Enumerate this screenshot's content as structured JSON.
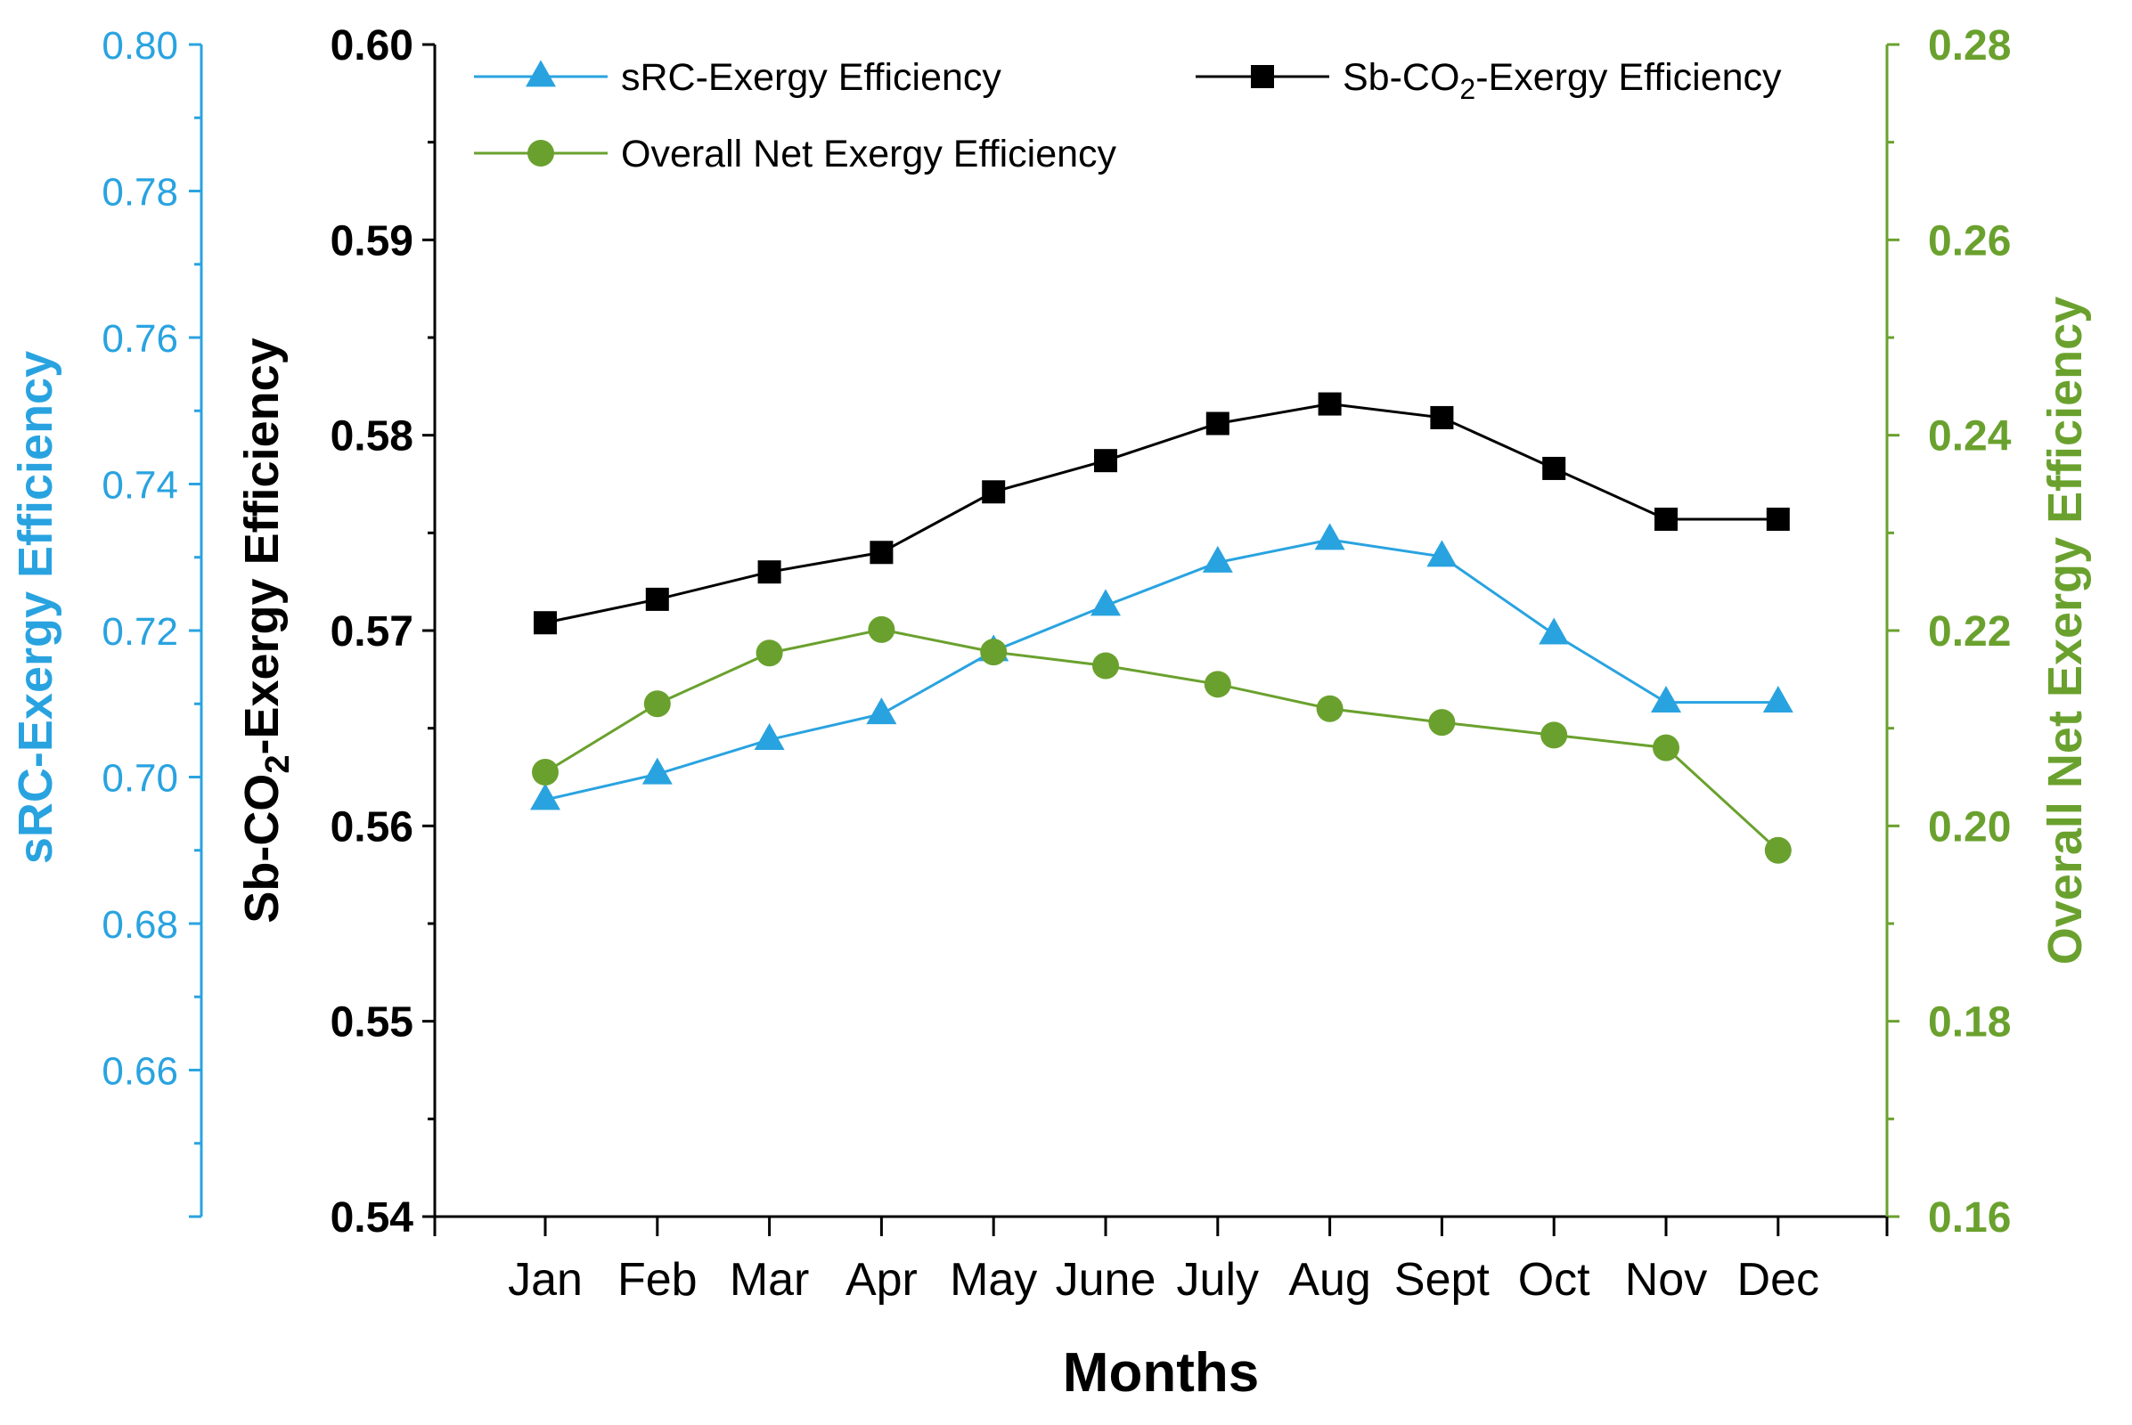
{
  "chart_data": {
    "type": "line",
    "xlabel": "Months",
    "categories": [
      "Jan",
      "Feb",
      "Mar",
      "Apr",
      "May",
      "June",
      "July",
      "Aug",
      "Sept",
      "Oct",
      "Nov",
      "Dec"
    ],
    "axes": {
      "left_outer": {
        "label": "sRC-Exergy Efficiency",
        "range": [
          0.64,
          0.8
        ],
        "ticks": [
          "0.66",
          "0.68",
          "0.70",
          "0.72",
          "0.74",
          "0.76",
          "0.78",
          "0.80"
        ],
        "color": "#29a3e0"
      },
      "left_inner": {
        "label_main": "Sb-CO",
        "label_sub": "2",
        "label_tail": "-Exergy Efficiency",
        "range": [
          0.54,
          0.6
        ],
        "ticks": [
          "0.54",
          "0.55",
          "0.56",
          "0.57",
          "0.58",
          "0.59",
          "0.60"
        ],
        "color": "#000000"
      },
      "right": {
        "label": "Overall Net Exergy Efficiency",
        "range": [
          0.16,
          0.28
        ],
        "ticks": [
          "0.16",
          "0.18",
          "0.20",
          "0.22",
          "0.24",
          "0.26",
          "0.28"
        ],
        "color": "#6aa12e"
      }
    },
    "series": [
      {
        "name": "sRC-Exergy Efficiency",
        "axis": "left_outer",
        "marker": "triangle",
        "color": "#29a3e0",
        "values": [
          0.6969,
          0.7004,
          0.7051,
          0.7086,
          0.7172,
          0.7234,
          0.7293,
          0.7324,
          0.7301,
          0.7195,
          0.7102,
          0.7102
        ]
      },
      {
        "name_main": "Sb-CO",
        "name_sub": "2",
        "name_tail": "-Exergy Efficiency",
        "axis": "left_inner",
        "marker": "square",
        "color": "#000000",
        "values": [
          0.5704,
          0.5716,
          0.573,
          0.574,
          0.5771,
          0.5787,
          0.5806,
          0.5816,
          0.5809,
          0.5783,
          0.5757,
          0.5757
        ]
      },
      {
        "name": "Overall Net Exergy Efficiency",
        "axis": "right",
        "marker": "circle",
        "color": "#6aa12e",
        "values": [
          0.2055,
          0.2125,
          0.2177,
          0.2201,
          0.2178,
          0.2164,
          0.2145,
          0.212,
          0.2106,
          0.2093,
          0.208,
          0.1975
        ]
      }
    ]
  }
}
